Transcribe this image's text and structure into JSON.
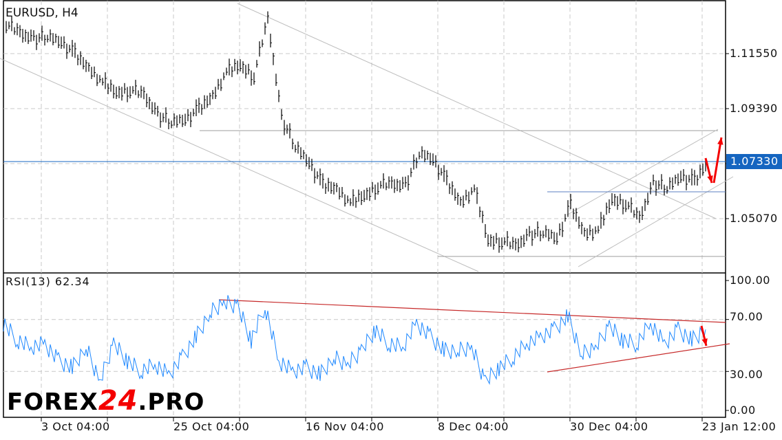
{
  "chart_data": [
    {
      "type": "ohlc-bar",
      "title": "EURUSD, H4",
      "symbol": "EURUSD",
      "timeframe": "H4",
      "current_price": "1.07330",
      "y_ticks": [
        "1.11550",
        "1.09390",
        "1.05070"
      ],
      "ylim": [
        1.0294,
        1.1366
      ],
      "x_ticks": [
        "3 Oct 04:00",
        "25 Oct 04:00",
        "16 Nov 04:00",
        "8 Dec 04:00",
        "30 Dec 04:00",
        "23 Jan 12:00"
      ],
      "grid": true,
      "close": [
        1.1271,
        1.1231,
        1.1217,
        1.1217,
        1.1204,
        1.115,
        1.1096,
        1.1042,
        1.1001,
        1.1015,
        1.0988,
        1.092,
        1.088,
        1.0901,
        1.0934,
        1.0988,
        1.1082,
        1.1109,
        1.1069,
        1.1285,
        1.0907,
        1.0785,
        1.0731,
        1.0637,
        1.0623,
        1.0569,
        1.0596,
        1.0637,
        1.0637,
        1.0642,
        1.0758,
        1.0745,
        1.065,
        1.0569,
        1.0623,
        1.0421,
        1.0421,
        1.0394,
        1.0448,
        1.0448,
        1.0434,
        1.0556,
        1.0448,
        1.0461,
        1.0583,
        1.0569,
        1.0502,
        1.065,
        1.0623,
        1.0677,
        1.065,
        1.0733
      ],
      "colors": {
        "bars": "#000000",
        "price_line": "#1565c0",
        "trendlines": "#bdbdbd",
        "arrows": "#f40000"
      }
    },
    {
      "type": "line",
      "title": "RSI(13) 62.34",
      "indicator": "RSI(13)",
      "last_value": "62.34",
      "y_ticks": [
        "100.00",
        "70.00",
        "30.00",
        "0.00"
      ],
      "ylim": [
        0,
        100
      ],
      "values": [
        67.2,
        54.0,
        48.7,
        51.3,
        38.1,
        32.8,
        48.7,
        22.2,
        51.3,
        38.1,
        30.2,
        35.4,
        27.5,
        40.7,
        56.6,
        75.1,
        83.1,
        80.4,
        54.0,
        80.4,
        38.1,
        30.2,
        32.8,
        27.5,
        40.7,
        35.4,
        46.0,
        61.9,
        51.3,
        48.7,
        67.2,
        56.6,
        46.0,
        46.0,
        48.7,
        22.2,
        32.8,
        40.7,
        51.3,
        56.6,
        61.9,
        72.5,
        43.4,
        48.7,
        64.6,
        54.0,
        51.3,
        67.2,
        51.3,
        61.9,
        54.0,
        62.34
      ],
      "colors": {
        "line": "#1e88ff",
        "trendlines": "#c62828",
        "arrows": "#f40000"
      }
    }
  ],
  "logo": {
    "part1": "FOREX",
    "part2": "24",
    "part3": ".PRO"
  }
}
